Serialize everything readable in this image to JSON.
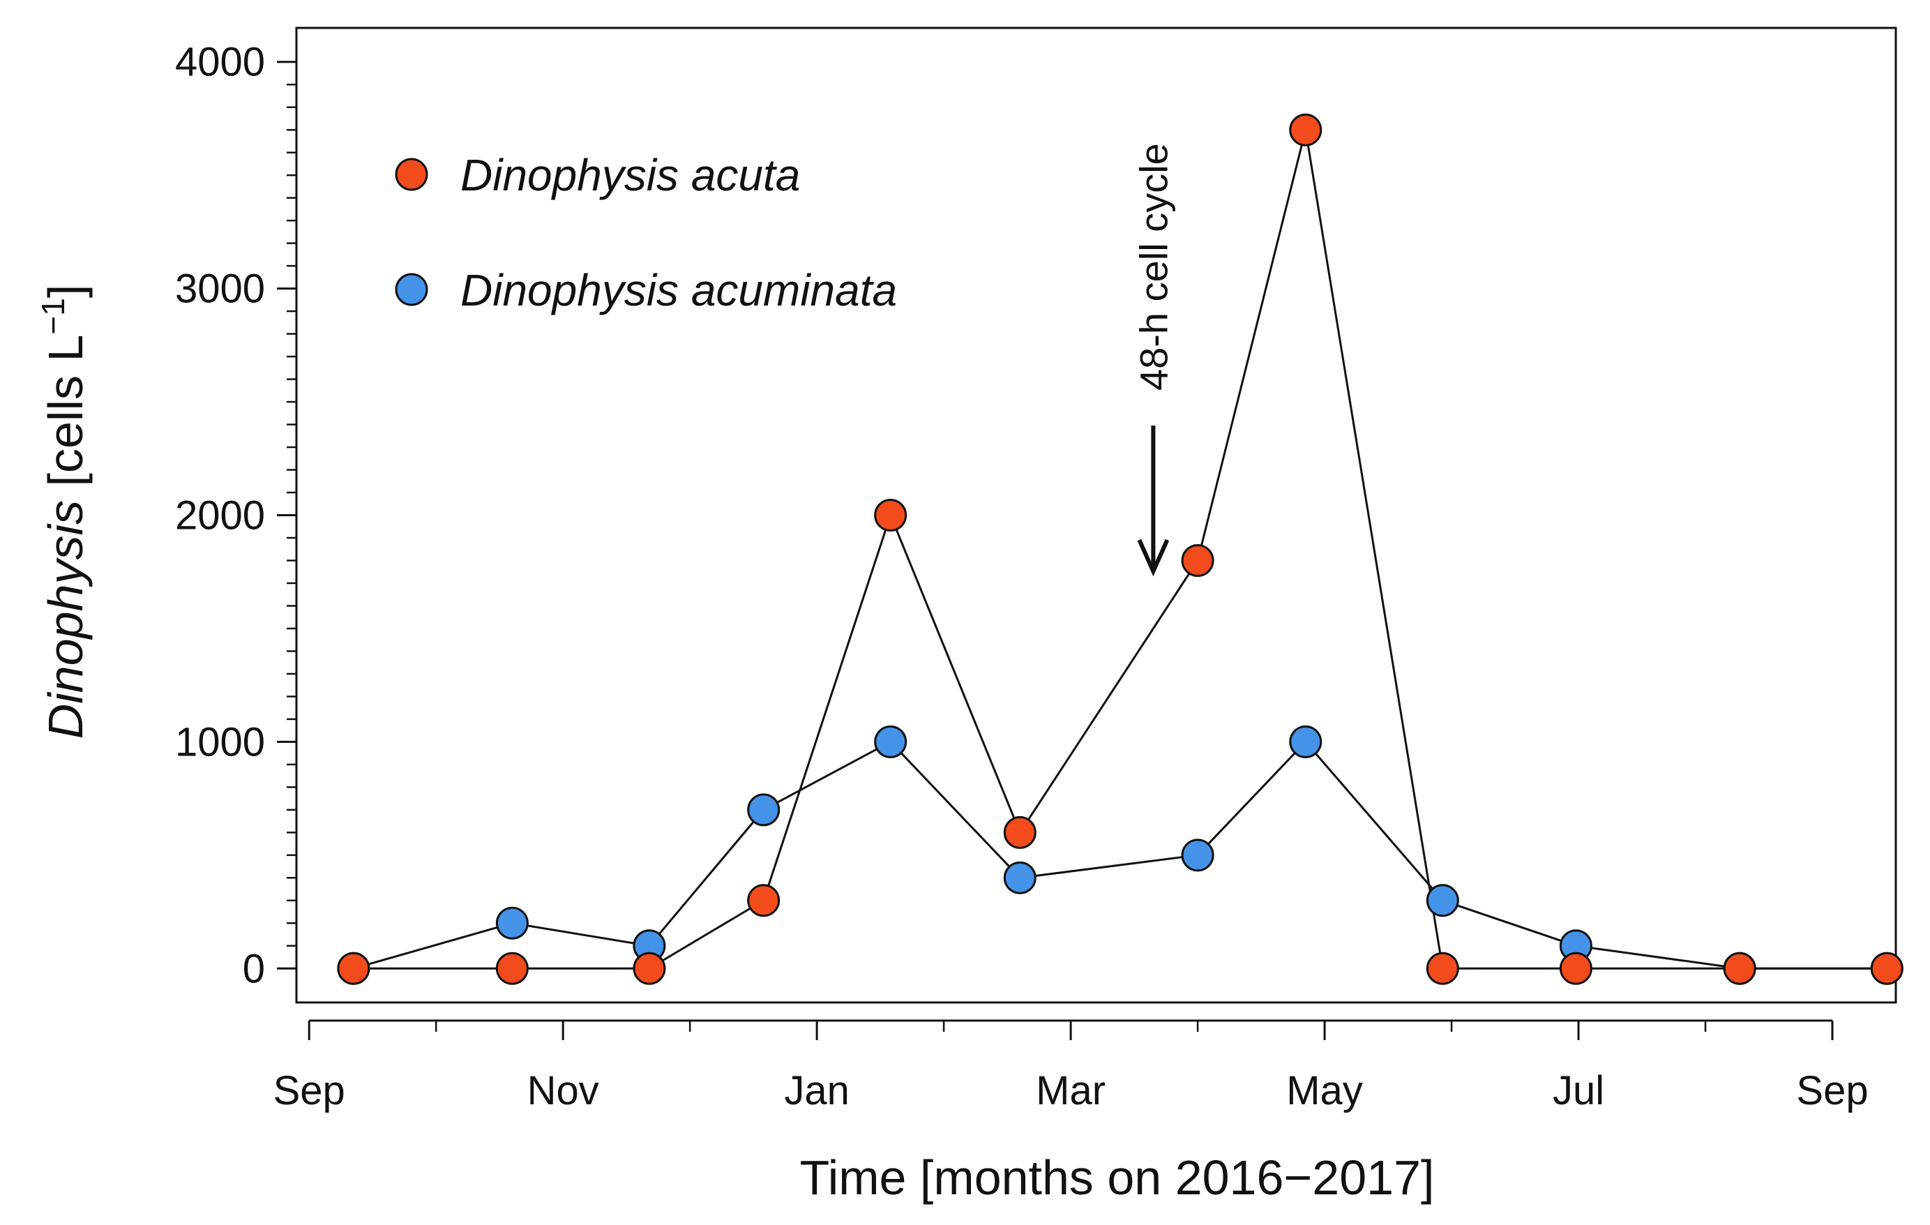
{
  "chart_data": {
    "type": "line",
    "title": "",
    "xlabel": "Time [months on 2016−2017]",
    "ylabel": {
      "italic": "Dinophysis",
      "unit_prefix": " [cells L",
      "unit_sup": "−1",
      "unit_suffix": "]"
    },
    "ylim": [
      -150,
      4150
    ],
    "yticks": [
      0,
      1000,
      2000,
      3000,
      4000
    ],
    "xlim": [
      -0.1,
      12.5
    ],
    "xticks": [
      {
        "pos": 0,
        "label": "Sep"
      },
      {
        "pos": 2,
        "label": "Nov"
      },
      {
        "pos": 4,
        "label": "Jan"
      },
      {
        "pos": 6,
        "label": "Mar"
      },
      {
        "pos": 8,
        "label": "May"
      },
      {
        "pos": 10,
        "label": "Jul"
      },
      {
        "pos": 12,
        "label": "Sep"
      }
    ],
    "x_unit": "months since 1 Sep 2016",
    "series": [
      {
        "name": "Dinophysis acuta",
        "color": "#F24C1C",
        "points": [
          {
            "x": 0.35,
            "y": 0
          },
          {
            "x": 1.6,
            "y": 0
          },
          {
            "x": 2.68,
            "y": 0
          },
          {
            "x": 3.58,
            "y": 300
          },
          {
            "x": 4.58,
            "y": 2000
          },
          {
            "x": 5.6,
            "y": 600
          },
          {
            "x": 7.0,
            "y": 1800
          },
          {
            "x": 7.85,
            "y": 3700
          },
          {
            "x": 8.93,
            "y": 0
          },
          {
            "x": 9.98,
            "y": 0
          },
          {
            "x": 11.27,
            "y": 0
          },
          {
            "x": 12.43,
            "y": 0
          }
        ]
      },
      {
        "name": "Dinophysis acuminata",
        "color": "#4493E8",
        "points": [
          {
            "x": 0.35,
            "y": 0
          },
          {
            "x": 1.6,
            "y": 200
          },
          {
            "x": 2.68,
            "y": 100
          },
          {
            "x": 3.58,
            "y": 700
          },
          {
            "x": 4.58,
            "y": 1000
          },
          {
            "x": 5.6,
            "y": 400
          },
          {
            "x": 7.0,
            "y": 500
          },
          {
            "x": 7.85,
            "y": 1000
          },
          {
            "x": 8.93,
            "y": 300
          },
          {
            "x": 9.98,
            "y": 100
          },
          {
            "x": 11.27,
            "y": 0
          },
          {
            "x": 12.43,
            "y": 0
          }
        ]
      }
    ],
    "legend": {
      "placement": "top-left",
      "entries": [
        "Dinophysis acuta",
        "Dinophysis acuminata"
      ]
    },
    "annotations": [
      {
        "text": "48-h cell cycle",
        "x": 6.65,
        "y": 1900,
        "arrow": "down",
        "orientation": "vertical"
      }
    ],
    "grid": false
  }
}
